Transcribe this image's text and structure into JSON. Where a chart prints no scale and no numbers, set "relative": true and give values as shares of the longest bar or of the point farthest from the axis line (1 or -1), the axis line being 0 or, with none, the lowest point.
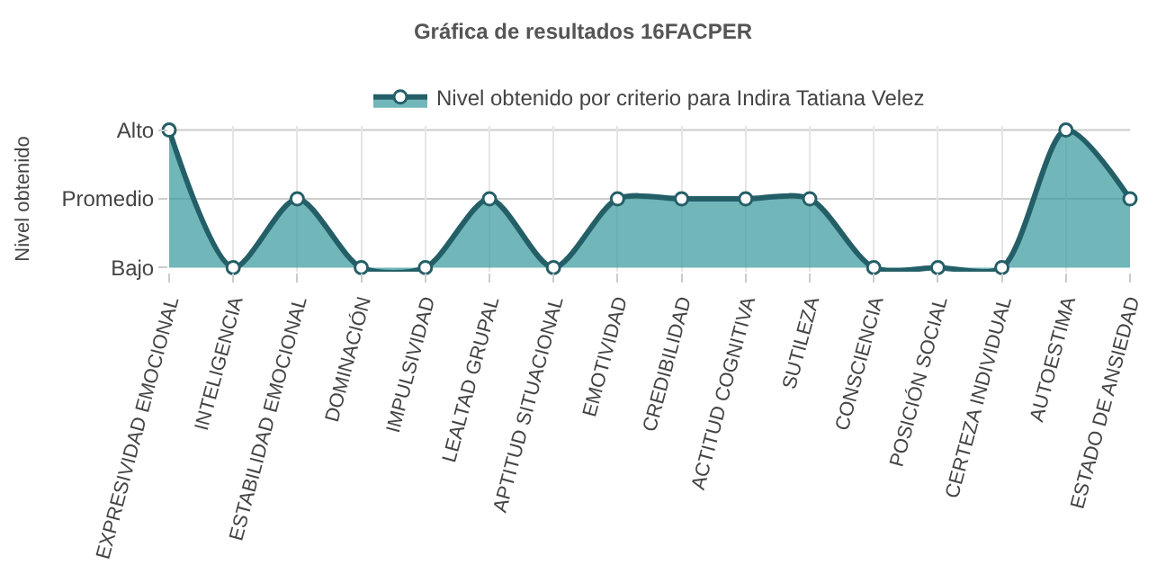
{
  "chart_data": {
    "type": "area",
    "title": "Gráfica de resultados 16FACPER",
    "ylabel": "Nivel obtenido",
    "categories": [
      "EXPRESIVIDAD EMOCIONAL",
      "INTELIGENCIA",
      "ESTABILIDAD EMOCIONAL",
      "DOMINACIÓN",
      "IMPULSIVIDAD",
      "LEALTAD GRUPAL",
      "APTITUD SITUACIONAL",
      "EMOTIVIDAD",
      "CREDIBILIDAD",
      "ACTITUD COGNITIVA",
      "SUTILEZA",
      "CONSCIENCIA",
      "POSICIÓN SOCIAL",
      "CERTEZA INDIVIDUAL",
      "AUTOESTIMA",
      "ESTADO DE ANSIEDAD"
    ],
    "series": [
      {
        "name": "Nivel obtenido por criterio para Indira Tatiana Velez",
        "color": "#245f68",
        "values": [
          1,
          0,
          0.5,
          0,
          0,
          0.5,
          0,
          0.5,
          0.5,
          0.5,
          0.5,
          0,
          0,
          0,
          1,
          0.5
        ]
      }
    ],
    "relative": true,
    "annotations": [
      "Bajo",
      "Promedio",
      "Alto"
    ],
    "ref_lines": [
      {
        "axis": "y",
        "value": 0.5,
        "color": "#cccccc"
      },
      {
        "axis": "y",
        "value": 1,
        "color": "#cccccc"
      }
    ],
    "grid": "x",
    "legend": "top",
    "marker": "circle"
  }
}
